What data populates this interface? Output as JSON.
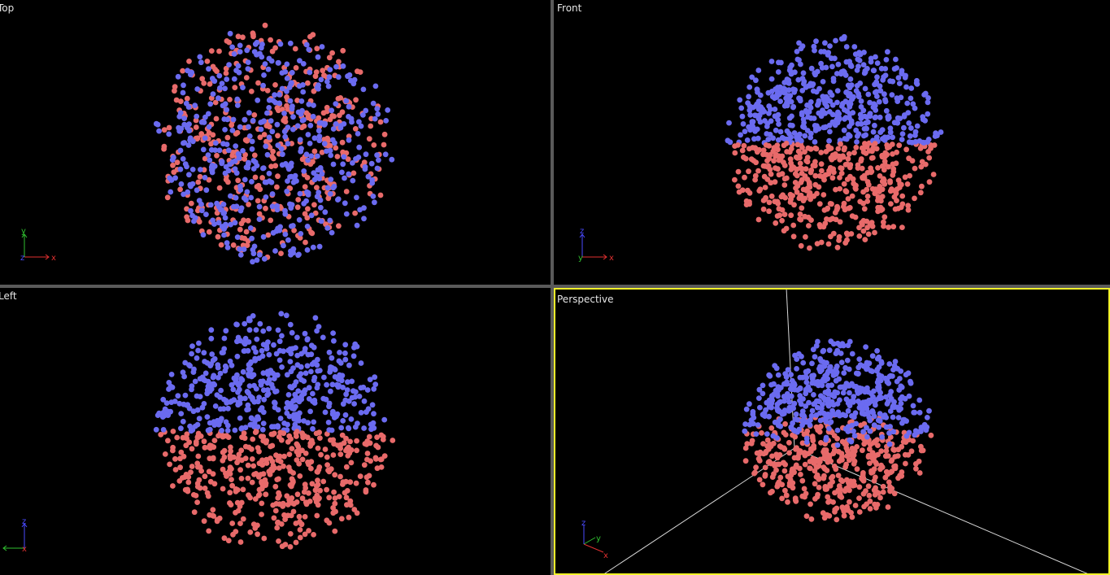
{
  "viewports": [
    {
      "id": "top",
      "label": "Top",
      "active": false,
      "projection": "top",
      "axes": {
        "right": "x",
        "up": "y",
        "toward": "z"
      }
    },
    {
      "id": "front",
      "label": "Front",
      "active": false,
      "projection": "front",
      "axes": {
        "right": "x",
        "up": "z",
        "toward": "y"
      }
    },
    {
      "id": "left",
      "label": "Left",
      "active": false,
      "projection": "left",
      "axes": {
        "right": "x",
        "up": "z",
        "toward": "y"
      }
    },
    {
      "id": "perspective",
      "label": "Perspective",
      "active": true,
      "projection": "perspective",
      "axes": {
        "x": "x",
        "y": "y",
        "z": "z"
      }
    }
  ],
  "colors": {
    "background": "#000000",
    "particle_upper": "#6b6bf0",
    "particle_lower": "#e86a6a",
    "active_border": "#f2f22a",
    "separator": "#5a5a5a",
    "axis_x": "#e03030",
    "axis_y": "#30c030",
    "axis_z": "#4a4aff",
    "grid_line": "#d8d8d8"
  }
}
